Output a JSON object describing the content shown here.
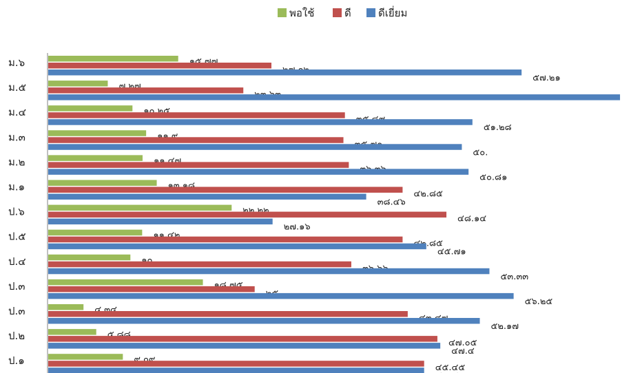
{
  "chart_data": {
    "type": "bar",
    "orientation": "horizontal",
    "categories": [
      "ม.๖",
      "ม.๕",
      "ม.๔",
      "ม.๓",
      "ม.๒",
      "ม.๑",
      "ป.๖",
      "ป.๕",
      "ป.๔",
      "ป.๓",
      "ป.๓",
      "ป.๒",
      "ป.๑"
    ],
    "legend_position": "top",
    "grid": false,
    "xlim": [
      0,
      70
    ],
    "series": [
      {
        "name": "พอใช้",
        "color": "#9BBB59",
        "values": [
          15.77,
          7.27,
          10.25,
          11.9,
          11.47,
          13.18,
          22.22,
          11.42,
          10.0,
          18.75,
          4.34,
          5.88,
          9.09
        ],
        "labels": [
          "๑๕.๗๗",
          "๗.๒๗",
          "๑๐.๒๕",
          "๑๑.๙",
          "๑๑.๔๗",
          "๑๓.๑๘",
          "๒๒.๒๒",
          "๑๑.๔๒",
          "๑๐.",
          "๑๘.๗๕",
          "๔.๓๔",
          "๕.๘๘",
          "๙.๐๙"
        ]
      },
      {
        "name": "ดี",
        "color": "#C0504D",
        "values": [
          27.02,
          23.63,
          35.89,
          35.71,
          36.36,
          42.85,
          48.14,
          42.85,
          36.66,
          25.0,
          43.47,
          47.05,
          45.45
        ],
        "labels": [
          "๒๗.๐๒",
          "๒๓.๖๓",
          "๓๕.๘๙",
          "๓๕.๗๑",
          "๓๖.๓๖",
          "๔๒.๘๕",
          "๔๘.๑๔",
          "๔๒.๘๕",
          "๓๖.๖๖",
          "๒๕.",
          "๔๓.๔๗",
          "๔๗.๐๕",
          "๔๕.๔๕"
        ]
      },
      {
        "name": "ดีเยี่ยม",
        "color": "#4F81BD",
        "values": [
          57.21,
          69.09,
          51.28,
          50.0,
          50.81,
          38.46,
          27.16,
          45.71,
          53.33,
          56.25,
          52.17,
          47.4,
          45.45
        ],
        "labels": [
          "๕๗.๒๑",
          "๖๙.๐๙",
          "๕๑.๒๘",
          "๕๐.",
          "๕๐.๘๑",
          "๓๘.๔๖",
          "๒๗.๑๖",
          "๔๕.๗๑",
          "๕๓.๓๓",
          "๕๖.๒๕",
          "๕๒.๑๗",
          "๔๗.๔",
          "๔๕.๔๕"
        ]
      }
    ]
  }
}
